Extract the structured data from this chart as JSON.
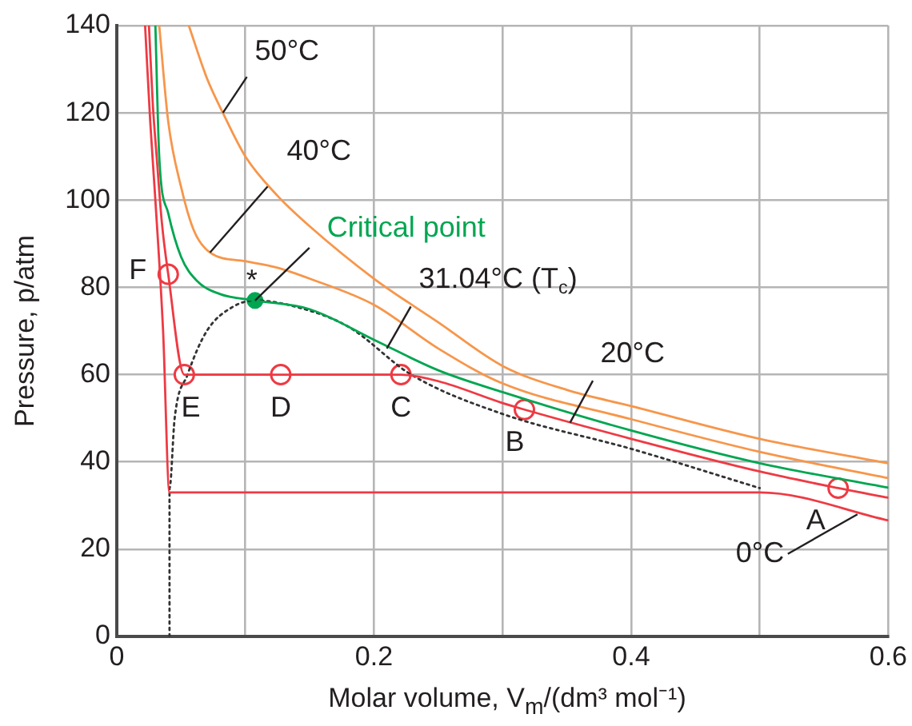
{
  "chart_data": {
    "type": "line",
    "xlabel": "Molar volume, V$_{m}$/(dm³ mol⁻¹)",
    "ylabel": "Pressure, p/atm",
    "xlim": [
      0,
      0.6
    ],
    "xticks": [
      0,
      {
        "value": 0.1,
        "label": null
      },
      0.2,
      {
        "value": 0.3,
        "label": null
      },
      0.4,
      {
        "value": 0.5,
        "label": null
      },
      0.6
    ],
    "ylim": [
      0,
      140
    ],
    "yticks": [
      0,
      20,
      40,
      60,
      80,
      100,
      120,
      140
    ],
    "grid": true,
    "legend": false,
    "series": [
      {
        "color": "#ee3a43",
        "x": [
          0.022,
          0.026,
          0.03,
          0.036,
          0.041,
          0.5,
          0.6
        ],
        "values": [
          140,
          118,
          100,
          70,
          33,
          33,
          26.6
        ]
      },
      {
        "color": "#ee3a43",
        "x": [
          0.025,
          0.028,
          0.031,
          0.035,
          0.04,
          0.0525,
          0.221,
          0.25,
          0.3,
          0.317,
          0.4,
          0.5,
          0.561,
          0.6
        ],
        "values": [
          140,
          122,
          110,
          95,
          83,
          60,
          60,
          58.5,
          53.5,
          52,
          45.3,
          37.8,
          34,
          31.8
        ]
      },
      {
        "color": "#00a651",
        "x": [
          0.03,
          0.033,
          0.04,
          0.05,
          0.062,
          0.08,
          0.1075,
          0.15,
          0.2,
          0.25,
          0.3,
          0.4,
          0.5,
          0.6
        ],
        "values": [
          140,
          110,
          97,
          87,
          81.6,
          78.5,
          77,
          75,
          68,
          61,
          56,
          47.2,
          39.7,
          34.1
        ]
      },
      {
        "color": "#f7964a",
        "x": [
          0.033,
          0.04,
          0.05,
          0.06,
          0.0725,
          0.1,
          0.125,
          0.15,
          0.2,
          0.25,
          0.3,
          0.4,
          0.5,
          0.6
        ],
        "values": [
          140,
          118,
          103,
          93,
          88,
          86,
          84.5,
          82,
          76,
          66,
          58,
          49.8,
          42.3,
          36.3
        ]
      },
      {
        "color": "#f7964a",
        "x": [
          0.056,
          0.07,
          0.0825,
          0.1,
          0.125,
          0.15,
          0.2,
          0.25,
          0.3,
          0.35,
          0.4,
          0.5,
          0.6
        ],
        "values": [
          140,
          128,
          120,
          110,
          101,
          94,
          82,
          72,
          62,
          56.5,
          52.8,
          45.3,
          39.7
        ]
      },
      {
        "color": "#333333",
        "line_style": "dotted",
        "x": [
          0.041,
          0.041,
          0.045,
          0.055,
          0.07,
          0.09,
          0.1075,
          0.14,
          0.18,
          0.229,
          0.3,
          0.4,
          0.5
        ],
        "values": [
          0,
          34,
          50,
          60,
          70,
          75.5,
          77,
          75.5,
          71,
          60,
          51,
          43,
          34
        ]
      },
      {
        "type": "scatter",
        "marker": "circle",
        "color": "#ee3a43",
        "x": [
          0.561,
          0.317,
          0.221,
          0.1275,
          0.0525,
          0.04
        ],
        "values": [
          34,
          52,
          60,
          60,
          60,
          83
        ]
      },
      {
        "type": "scatter",
        "marker": "circle",
        "name": "Critical point",
        "color": "#00a651",
        "x": [
          0.1075
        ],
        "values": [
          77
        ]
      }
    ],
    "annotations": [
      {
        "text": "50°C",
        "x": 0.0825,
        "y": 120
      },
      {
        "text": "40°C",
        "x": 0.0725,
        "y": 88
      },
      {
        "text": "31.04°C (T$_{c}$)",
        "x": 0.21,
        "y": 66
      },
      {
        "text": "20°C",
        "x": 0.3525,
        "y": 49
      },
      {
        "text": "0°C",
        "x": 0.576,
        "y": 28
      },
      {
        "text": "*",
        "x": 0.1075,
        "y": 77
      },
      {
        "text": "A",
        "x": 0.561,
        "y": 34
      },
      {
        "text": "B",
        "x": 0.317,
        "y": 52
      },
      {
        "text": "C",
        "x": 0.221,
        "y": 60
      },
      {
        "text": "D",
        "x": 0.1275,
        "y": 60
      },
      {
        "text": "E",
        "x": 0.0525,
        "y": 60
      },
      {
        "text": "F",
        "x": 0.04,
        "y": 83
      }
    ]
  }
}
